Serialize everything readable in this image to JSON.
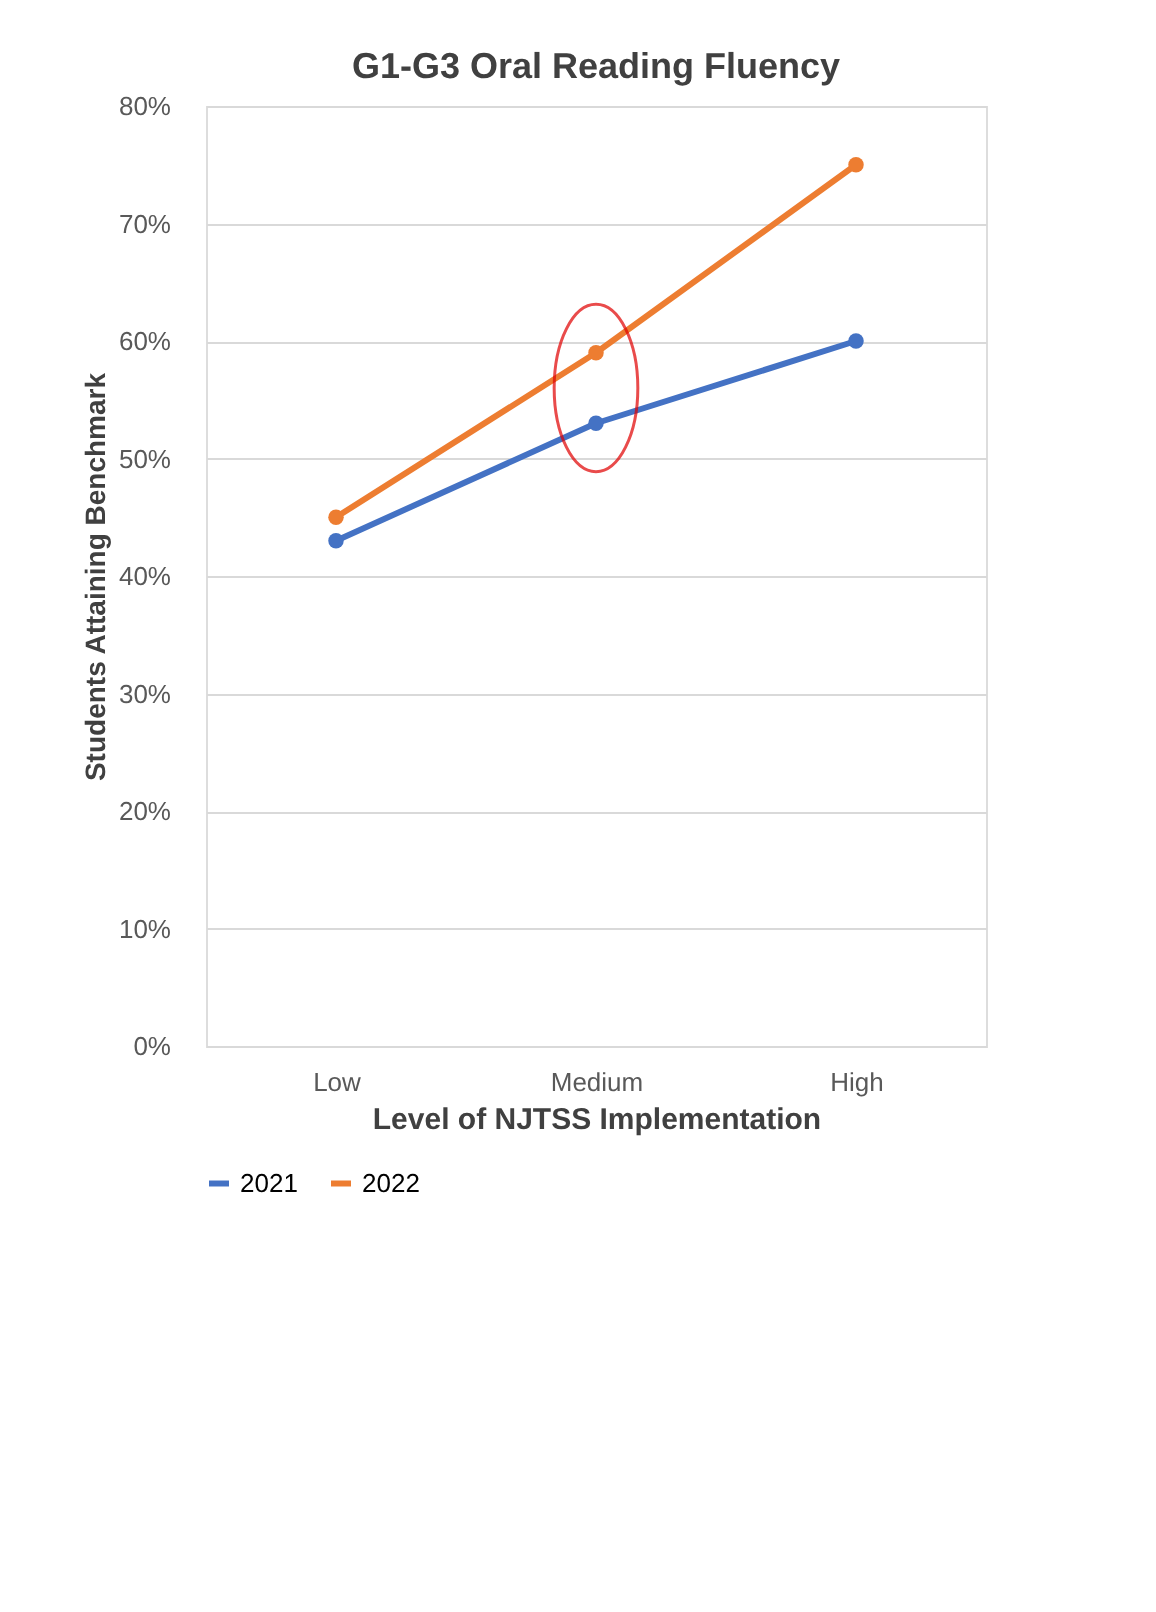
{
  "chart_data": {
    "type": "line",
    "title": "G1-G3 Oral Reading Fluency",
    "xlabel": "Level of NJTSS Implementation",
    "ylabel": "Students Attaining Benchmark",
    "categories": [
      "Low",
      "Medium",
      "High"
    ],
    "series": [
      {
        "name": "2021",
        "color": "#4472c4",
        "values": [
          43,
          53,
          60
        ]
      },
      {
        "name": "2022",
        "color": "#ed7d31",
        "values": [
          45,
          59,
          75
        ]
      }
    ],
    "ylim": [
      0,
      80
    ],
    "yticks": [
      {
        "value": 0,
        "label": "0%"
      },
      {
        "value": 10,
        "label": "10%"
      },
      {
        "value": 20,
        "label": "20%"
      },
      {
        "value": 30,
        "label": "30%"
      },
      {
        "value": 40,
        "label": "40%"
      },
      {
        "value": 50,
        "label": "50%"
      },
      {
        "value": 60,
        "label": "60%"
      },
      {
        "value": 70,
        "label": "70%"
      },
      {
        "value": 80,
        "label": "80%"
      }
    ],
    "grid": "y",
    "legend": "bottom",
    "marker": "circle",
    "line_style": "solid"
  }
}
